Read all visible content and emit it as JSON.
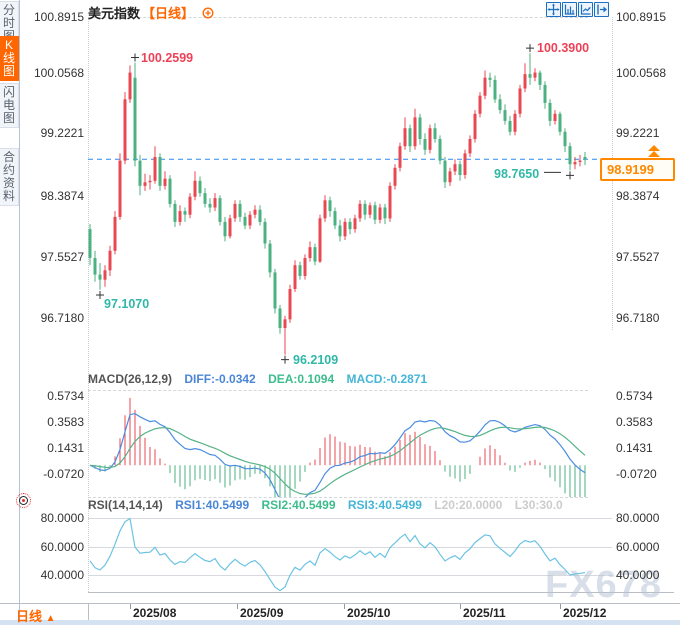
{
  "sidebar": {
    "items": [
      {
        "label": "分时图",
        "selected": false
      },
      {
        "label": "K线图",
        "selected": true
      },
      {
        "label": "闪电图",
        "selected": false
      },
      {
        "label": "合约资料",
        "selected": false
      }
    ]
  },
  "header": {
    "symbol": "美元指数",
    "period": "【日线】"
  },
  "toolbar": {
    "icons": [
      "crosshair",
      "expand-x",
      "shrink-x",
      "pan-right"
    ]
  },
  "main_chart": {
    "y_axis_labels": [
      "100.8915",
      "100.0568",
      "99.2221",
      "98.3874",
      "97.5527",
      "96.7180"
    ],
    "annotations": {
      "high1": "100.2599",
      "high2": "100.3900",
      "low1": "97.1070",
      "low2": "96.2109",
      "low3": "98.7650"
    },
    "last_price": "98.9199"
  },
  "macd_panel": {
    "title": "MACD(26,12,9)",
    "diff_label": "DIFF:-0.0342",
    "dea_label": "DEA:0.1094",
    "macd_label": "MACD:-0.2871",
    "y_axis_labels": [
      "0.5734",
      "0.3583",
      "0.1431",
      "-0.0720"
    ]
  },
  "rsi_panel": {
    "title": "RSI(14,14,14)",
    "rsi1_label": "RSI1:40.5499",
    "rsi2_label": "RSI2:40.5499",
    "rsi3_label": "RSI3:40.5499",
    "l20_label": "L20:20.0000",
    "l30_label": "L30:30.0",
    "y_axis_labels": [
      "80.0000",
      "60.0000",
      "40.0000"
    ]
  },
  "bottom": {
    "period_tab": "日线",
    "period_tab_arrow": "▲",
    "x_axis_labels": [
      "2025/08",
      "2025/09",
      "2025/10",
      "2025/11",
      "2025/12"
    ]
  },
  "watermark": "FX678",
  "colors": {
    "up": "#e84852",
    "down": "#4cb180",
    "accent_orange": "#ff6600",
    "last_price_line": "#2b8cf0",
    "diff_line": "#4b8de0",
    "dea_line": "#56b288",
    "rsi_line": "#6cc3e3",
    "annotation_red": "#ef4156",
    "annotation_teal": "#2fb8a8"
  },
  "chart_data": {
    "type": "candlestick",
    "symbol": "美元指数",
    "period": "日线",
    "y_range": [
      96.718,
      100.8915
    ],
    "x_axis": [
      "2025/08",
      "2025/09",
      "2025/10",
      "2025/11",
      "2025/12"
    ],
    "key_points": {
      "high_early_aug": 100.2599,
      "low_late_jul": 97.107,
      "low_mid_sep": 96.2109,
      "high_mid_nov": 100.39,
      "low_late_nov": 98.765,
      "last_close": 98.9199
    },
    "marker_indices": {
      "low1": 2,
      "high1": 9,
      "low2": 39,
      "high2": 88,
      "low3": 96
    },
    "indicators": {
      "macd": {
        "fast": 12,
        "slow": 26,
        "signal": 9,
        "diff": -0.0342,
        "dea": 0.1094,
        "macd": -0.2871
      },
      "rsi": {
        "periods": [
          14,
          14,
          14
        ],
        "rsi1": 40.5499,
        "rsi2": 40.5499,
        "rsi3": 40.5499,
        "l20": 20.0,
        "l30": 30.0
      }
    },
    "candles": [
      [
        97.95,
        98.02,
        97.45,
        97.55
      ],
      [
        97.55,
        97.65,
        97.22,
        97.32
      ],
      [
        97.32,
        97.48,
        97.107,
        97.25
      ],
      [
        97.25,
        97.45,
        97.15,
        97.38
      ],
      [
        97.38,
        97.72,
        97.3,
        97.65
      ],
      [
        97.65,
        98.2,
        97.6,
        98.12
      ],
      [
        98.12,
        99.0,
        98.08,
        98.9
      ],
      [
        98.9,
        99.85,
        98.85,
        99.75
      ],
      [
        99.75,
        100.22,
        99.7,
        100.12
      ],
      [
        100.05,
        100.2599,
        98.82,
        98.9
      ],
      [
        98.9,
        98.98,
        98.42,
        98.55
      ],
      [
        98.55,
        98.72,
        98.48,
        98.6
      ],
      [
        98.6,
        98.7,
        98.5,
        98.62
      ],
      [
        98.62,
        99.1,
        98.58,
        98.95
      ],
      [
        98.95,
        99.0,
        98.48,
        98.55
      ],
      [
        98.55,
        98.75,
        98.5,
        98.65
      ],
      [
        98.65,
        98.7,
        98.25,
        98.3
      ],
      [
        98.3,
        98.35,
        97.98,
        98.05
      ],
      [
        98.05,
        98.28,
        98.0,
        98.2
      ],
      [
        98.2,
        98.25,
        98.05,
        98.15
      ],
      [
        98.15,
        98.45,
        98.1,
        98.4
      ],
      [
        98.4,
        98.75,
        98.35,
        98.62
      ],
      [
        98.62,
        98.68,
        98.4,
        98.45
      ],
      [
        98.45,
        98.52,
        98.25,
        98.3
      ],
      [
        98.3,
        98.38,
        98.18,
        98.25
      ],
      [
        98.25,
        98.45,
        98.2,
        98.38
      ],
      [
        98.38,
        98.42,
        98.0,
        98.05
      ],
      [
        98.05,
        98.12,
        97.78,
        97.85
      ],
      [
        97.85,
        98.15,
        97.82,
        98.1
      ],
      [
        98.1,
        98.35,
        98.05,
        98.3
      ],
      [
        98.3,
        98.35,
        98.05,
        98.12
      ],
      [
        98.12,
        98.18,
        97.95,
        98.0
      ],
      [
        98.0,
        98.2,
        97.95,
        98.15
      ],
      [
        98.15,
        98.28,
        98.1,
        98.22
      ],
      [
        98.22,
        98.28,
        98.0,
        98.05
      ],
      [
        98.05,
        98.1,
        97.68,
        97.75
      ],
      [
        97.75,
        97.8,
        97.28,
        97.35
      ],
      [
        97.35,
        97.4,
        96.78,
        96.85
      ],
      [
        96.85,
        96.9,
        96.5,
        96.58
      ],
      [
        96.58,
        96.75,
        96.2109,
        96.7
      ],
      [
        96.7,
        97.18,
        96.65,
        97.12
      ],
      [
        97.12,
        97.52,
        97.08,
        97.45
      ],
      [
        97.45,
        97.5,
        97.25,
        97.3
      ],
      [
        97.3,
        97.6,
        97.25,
        97.55
      ],
      [
        97.55,
        97.78,
        97.5,
        97.7
      ],
      [
        97.7,
        97.75,
        97.45,
        97.5
      ],
      [
        97.5,
        98.15,
        97.48,
        98.1
      ],
      [
        98.1,
        98.42,
        98.05,
        98.35
      ],
      [
        98.35,
        98.4,
        98.12,
        98.2
      ],
      [
        98.2,
        98.25,
        97.95,
        98.0
      ],
      [
        98.0,
        98.08,
        97.78,
        97.85
      ],
      [
        97.85,
        98.1,
        97.8,
        98.05
      ],
      [
        98.05,
        98.1,
        97.88,
        97.95
      ],
      [
        97.95,
        98.15,
        97.9,
        98.1
      ],
      [
        98.1,
        98.35,
        98.05,
        98.3
      ],
      [
        98.3,
        98.35,
        98.08,
        98.15
      ],
      [
        98.15,
        98.32,
        98.1,
        98.28
      ],
      [
        98.28,
        98.33,
        98.02,
        98.08
      ],
      [
        98.08,
        98.3,
        98.03,
        98.25
      ],
      [
        98.25,
        98.3,
        98.02,
        98.1
      ],
      [
        98.1,
        98.6,
        98.05,
        98.55
      ],
      [
        98.55,
        98.85,
        98.5,
        98.8
      ],
      [
        98.8,
        99.15,
        98.75,
        99.1
      ],
      [
        99.1,
        99.5,
        99.05,
        99.35
      ],
      [
        99.35,
        99.4,
        99.02,
        99.1
      ],
      [
        99.1,
        99.62,
        99.05,
        99.5
      ],
      [
        99.5,
        99.55,
        99.12,
        99.2
      ],
      [
        99.2,
        99.28,
        98.98,
        99.05
      ],
      [
        99.05,
        99.4,
        99.0,
        99.35
      ],
      [
        99.35,
        99.42,
        99.15,
        99.2
      ],
      [
        99.2,
        99.25,
        98.85,
        98.9
      ],
      [
        98.9,
        98.95,
        98.52,
        98.6
      ],
      [
        98.6,
        98.8,
        98.55,
        98.75
      ],
      [
        98.75,
        98.92,
        98.7,
        98.85
      ],
      [
        98.85,
        98.9,
        98.62,
        98.7
      ],
      [
        98.7,
        99.05,
        98.65,
        99.0
      ],
      [
        99.0,
        99.25,
        98.95,
        99.2
      ],
      [
        99.2,
        99.6,
        99.15,
        99.55
      ],
      [
        99.55,
        99.85,
        99.5,
        99.8
      ],
      [
        99.8,
        100.15,
        99.75,
        100.05
      ],
      [
        100.05,
        100.12,
        99.92,
        100.02
      ],
      [
        100.02,
        100.08,
        99.7,
        99.75
      ],
      [
        99.75,
        99.82,
        99.55,
        99.6
      ],
      [
        99.6,
        99.68,
        99.4,
        99.45
      ],
      [
        99.45,
        99.52,
        99.25,
        99.3
      ],
      [
        99.3,
        99.6,
        99.25,
        99.55
      ],
      [
        99.55,
        99.95,
        99.5,
        99.9
      ],
      [
        99.9,
        100.25,
        99.85,
        100.1
      ],
      [
        100.1,
        100.39,
        99.95,
        100.05
      ],
      [
        100.05,
        100.18,
        100.0,
        100.12
      ],
      [
        100.12,
        100.15,
        99.88,
        99.95
      ],
      [
        99.95,
        100.0,
        99.62,
        99.7
      ],
      [
        99.7,
        99.75,
        99.38,
        99.45
      ],
      [
        99.45,
        99.6,
        99.4,
        99.55
      ],
      [
        99.55,
        99.58,
        99.25,
        99.3
      ],
      [
        99.3,
        99.35,
        99.02,
        99.1
      ],
      [
        99.1,
        99.15,
        98.765,
        98.85
      ],
      [
        98.85,
        98.95,
        98.78,
        98.88
      ],
      [
        98.88,
        98.98,
        98.82,
        98.9
      ],
      [
        98.95,
        99.02,
        98.84,
        98.9199
      ]
    ]
  }
}
